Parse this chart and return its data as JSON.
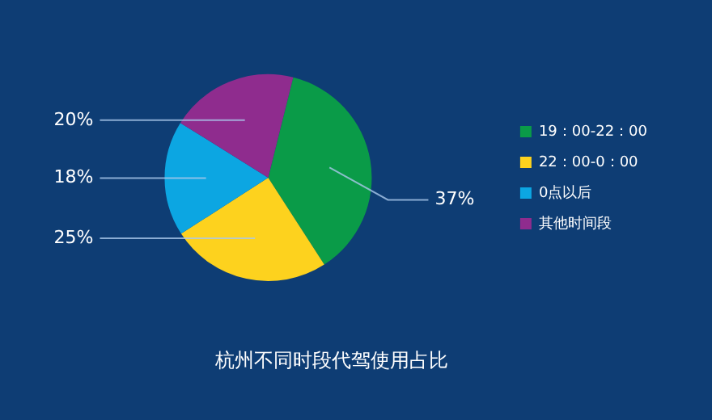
{
  "chart_data": {
    "type": "pie",
    "title": "杭州不同时段代驾使用占比",
    "categories": [
      "19：00-22：00",
      "22：00-0：00",
      "0点以后",
      "其他时间段"
    ],
    "values": [
      37,
      25,
      18,
      20
    ],
    "colors": [
      "#0a9b48",
      "#fdd21e",
      "#0ca6e2",
      "#8f2c8e"
    ],
    "value_labels": [
      "37%",
      "25%",
      "18%",
      "20%"
    ],
    "legend": "right"
  }
}
